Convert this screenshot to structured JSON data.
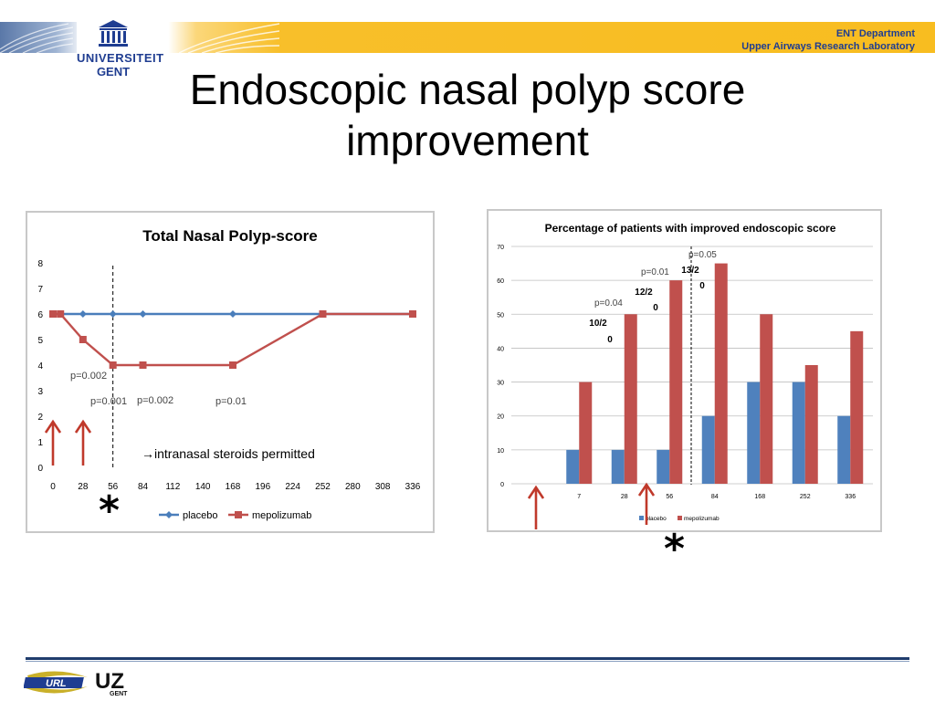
{
  "header": {
    "dept_line1": "ENT Department",
    "dept_line2": "Upper Airways Research Laboratory",
    "logo_line1": "UNIVERSITEIT",
    "logo_line2": "GENT"
  },
  "slide": {
    "title_line1": "Endoscopic nasal polyp score",
    "title_line2": "improvement"
  },
  "chart_data": [
    {
      "type": "line",
      "title": "Total Nasal Polyp-score",
      "x": [
        0,
        28,
        56,
        84,
        112,
        140,
        168,
        196,
        224,
        252,
        280,
        308,
        336
      ],
      "ylim": [
        0,
        8
      ],
      "yticks": [
        0,
        1,
        2,
        3,
        4,
        5,
        6,
        7,
        8
      ],
      "series": [
        {
          "name": "placebo",
          "color": "#4a7ebb",
          "points": [
            [
              0,
              6
            ],
            [
              7,
              6
            ],
            [
              28,
              6
            ],
            [
              56,
              6
            ],
            [
              84,
              6
            ],
            [
              168,
              6
            ],
            [
              252,
              6
            ],
            [
              336,
              6
            ]
          ]
        },
        {
          "name": "mepolizumab",
          "color": "#c0504d",
          "points": [
            [
              0,
              6
            ],
            [
              7,
              6
            ],
            [
              28,
              5
            ],
            [
              56,
              4
            ],
            [
              84,
              4
            ],
            [
              168,
              4
            ],
            [
              252,
              6
            ],
            [
              336,
              6
            ]
          ]
        }
      ],
      "annotations": [
        "p=0.002",
        "p=0.001",
        "p=0.002",
        "p=0.01"
      ],
      "note": "→intranasal steroids permitted",
      "grid": false,
      "legend": "bottom"
    },
    {
      "type": "bar",
      "title": "Percentage of patients with improved endoscopic score",
      "categories": [
        "",
        "7",
        "28",
        "56",
        "84",
        "168",
        "252",
        "336"
      ],
      "ylim": [
        0,
        70
      ],
      "yticks": [
        0,
        10,
        20,
        30,
        40,
        50,
        60,
        70
      ],
      "series": [
        {
          "name": "placebo",
          "color": "#4f81bd",
          "values": [
            0,
            10,
            10,
            10,
            20,
            30,
            30,
            20
          ]
        },
        {
          "name": "mepolizumab",
          "color": "#c0504d",
          "values": [
            0,
            30,
            50,
            60,
            65,
            50,
            35,
            45
          ]
        }
      ],
      "annotations": [
        "p=0.04",
        "p=0.01",
        "p=0.05"
      ],
      "fraction_labels": [
        "10/2",
        "0",
        "12/2",
        "0",
        "13/2",
        "0"
      ],
      "grid": true,
      "legend": "bottom"
    }
  ],
  "colors": {
    "arrow": "#c0392b",
    "accent_blue": "#1f3d91",
    "header_yellow": "#f8bd20"
  },
  "footer": {
    "url_logo": "URL",
    "uz_logo": "UZ",
    "uz_sub": "GENT"
  }
}
